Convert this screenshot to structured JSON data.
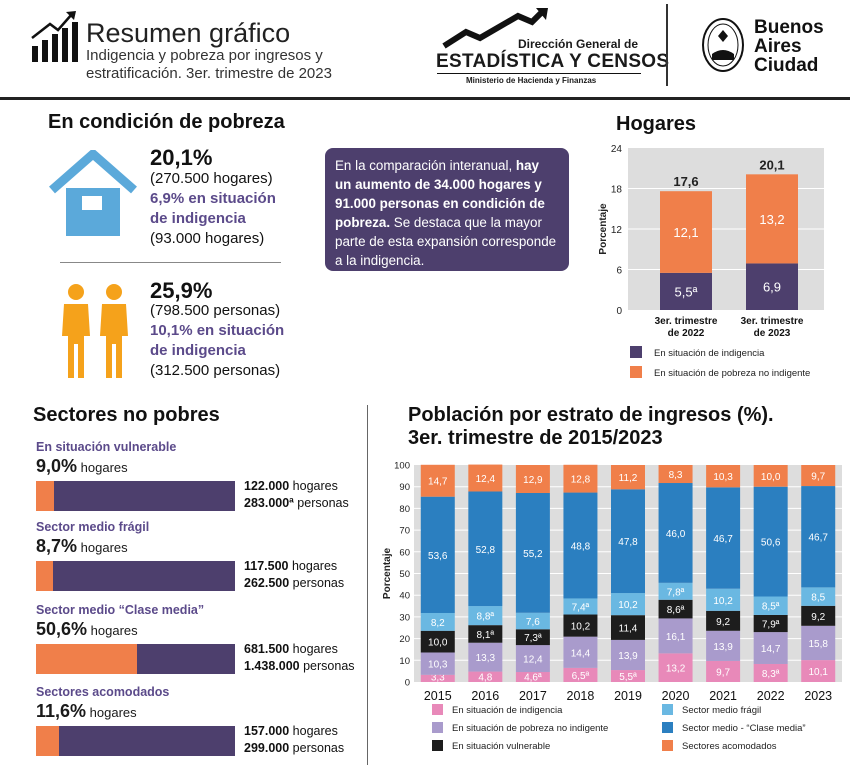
{
  "header": {
    "title": "Resumen gráfico",
    "subtitle_line1": "Indigencia y pobreza por ingresos y",
    "subtitle_line2": "estratificación. 3er. trimestre de 2023",
    "dgec_line1": "Dirección General de",
    "dgec_line2": "ESTADÍSTICA Y CENSOS",
    "dgec_line3": "Ministerio de Hacienda y Finanzas",
    "ba_line1": "Buenos",
    "ba_line2": "Aires",
    "ba_line3": "Ciudad"
  },
  "pobreza": {
    "title": "En condición de pobreza",
    "hogares_pct": "20,1%",
    "hogares_abs": "(270.500 hogares)",
    "hogares_ind_line1": "6,9% en situación",
    "hogares_ind_line2": "de indigencia",
    "hogares_ind_abs": "(93.000 hogares)",
    "personas_pct": "25,9%",
    "personas_abs": "(798.500 personas)",
    "personas_ind_line1": "10,1% en situación",
    "personas_ind_line2": "de indigencia",
    "personas_ind_abs": "(312.500 personas)"
  },
  "callout": {
    "t1": "En la comparación interanual, ",
    "b1": "hay un aumento de 34.000 hogares y 91.000 personas en condición de pobreza.",
    "t2": " Se destaca que la mayor parte de esta expansión corresponde a la indigencia."
  },
  "sectores": {
    "title": "Sectores no pobres",
    "items": [
      {
        "label": "En situación vulnerable",
        "pct": "9,0%",
        "unit": "hogares",
        "fill": 0.09,
        "hogares": "122.000",
        "personas": "283.000ª",
        "hog_word": "hogares",
        "per_word": "personas"
      },
      {
        "label": "Sector medio frágil",
        "pct": "8,7%",
        "unit": "hogares",
        "fill": 0.087,
        "hogares": "117.500",
        "personas": "262.500",
        "hog_word": "hogares",
        "per_word": "personas"
      },
      {
        "label": "Sector medio “Clase media”",
        "pct": "50,6%",
        "unit": "hogares",
        "fill": 0.506,
        "hogares": "681.500",
        "personas": "1.438.000",
        "hog_word": "hogares",
        "per_word": "personas"
      },
      {
        "label": "Sectores acomodados",
        "pct": "11,6%",
        "unit": "hogares",
        "fill": 0.116,
        "hogares": "157.000",
        "personas": "299.000",
        "hog_word": "hogares",
        "per_word": "personas"
      }
    ]
  },
  "colors": {
    "indigencia": "#4d3f6d",
    "pobreza_no_ind": "#f07f4a",
    "e_indigencia": "#e889b9",
    "e_pobreza": "#a99bcc",
    "e_vulnerable": "#1d1d1d",
    "e_fragil": "#6ab8e2",
    "e_clase_media": "#2b7fc0",
    "e_acomodados": "#f07f4a"
  },
  "chart_data": [
    {
      "type": "bar",
      "stacked": true,
      "title": "Hogares",
      "ylabel": "Porcentaje",
      "ylim": [
        0,
        24
      ],
      "yticks": [
        "0",
        "6",
        "12",
        "18",
        "24"
      ],
      "categories": [
        [
          "3er. trimestre",
          "de 2022"
        ],
        [
          "3er. trimestre",
          "de 2023"
        ]
      ],
      "totals": [
        "17,6",
        "20,1"
      ],
      "series": [
        {
          "name": "En situación de indigencia",
          "values": [
            5.5,
            6.9
          ],
          "labels": [
            "5,5ª",
            "6,9"
          ]
        },
        {
          "name": "En situación de pobreza no indigente",
          "values": [
            12.1,
            13.2
          ],
          "labels": [
            "12,1",
            "13,2"
          ]
        }
      ]
    },
    {
      "type": "bar",
      "stacked": true,
      "title_line1": "Población por estrato de ingresos (%).",
      "title_line2": "3er. trimestre de 2015/2023",
      "ylabel": "Porcentaje",
      "ylim": [
        0,
        100
      ],
      "yticks": [
        "0",
        "10",
        "20",
        "30",
        "40",
        "50",
        "60",
        "70",
        "80",
        "90",
        "100"
      ],
      "categories": [
        "2015",
        "2016",
        "2017",
        "2018",
        "2019",
        "2020",
        "2021",
        "2022",
        "2023"
      ],
      "series": [
        {
          "name": "En situación de indigencia",
          "values": [
            3.3,
            4.8,
            4.6,
            6.5,
            5.5,
            13.2,
            9.7,
            8.3,
            10.1
          ],
          "labels": [
            "3,3",
            "4,8",
            "4,6ª",
            "6,5ª",
            "5,5ª",
            "13,2",
            "9,7",
            "8,3ª",
            "10,1"
          ]
        },
        {
          "name": "En situación de pobreza no indigente",
          "values": [
            10.3,
            13.3,
            12.4,
            14.4,
            13.9,
            16.1,
            13.9,
            14.7,
            15.8
          ],
          "labels": [
            "10,3",
            "13,3",
            "12,4",
            "14,4",
            "13,9",
            "16,1",
            "13,9",
            "14,7",
            "15,8"
          ]
        },
        {
          "name": "En situación vulnerable",
          "values": [
            10.0,
            8.1,
            7.3,
            10.2,
            11.4,
            8.6,
            9.2,
            7.9,
            9.2
          ],
          "labels": [
            "10,0",
            "8,1ª",
            "7,3ª",
            "10,2",
            "11,4",
            "8,6ª",
            "9,2",
            "7,9ª",
            "9,2"
          ]
        },
        {
          "name": "Sector medio frágil",
          "values": [
            8.2,
            8.8,
            7.6,
            7.4,
            10.2,
            7.8,
            10.2,
            8.5,
            8.5
          ],
          "labels": [
            "8,2",
            "8,8ª",
            "7,6",
            "7,4ª",
            "10,2",
            "7,8ª",
            "10,2",
            "8,5ª",
            "8,5"
          ]
        },
        {
          "name": "Sector medio - “Clase media”",
          "values": [
            53.6,
            52.8,
            55.2,
            48.8,
            47.8,
            46.0,
            46.7,
            50.6,
            46.7
          ],
          "labels": [
            "53,6",
            "52,8",
            "55,2",
            "48,8",
            "47,8",
            "46,0",
            "46,7",
            "50,6",
            "46,7"
          ]
        },
        {
          "name": "Sectores acomodados",
          "values": [
            14.7,
            12.4,
            12.9,
            12.8,
            11.2,
            8.3,
            10.3,
            10.0,
            9.7
          ],
          "labels": [
            "14,7",
            "12,4",
            "12,9",
            "12,8",
            "11,2",
            "8,3",
            "10,3",
            "10,0",
            "9,7"
          ]
        }
      ]
    }
  ]
}
